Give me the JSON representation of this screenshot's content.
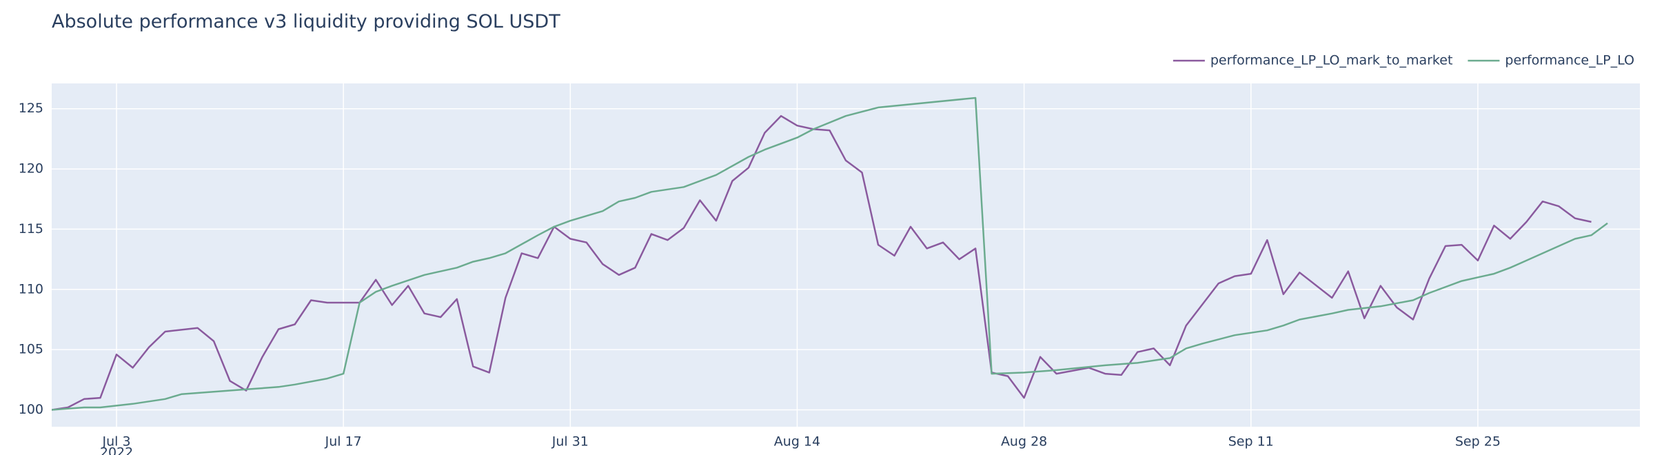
{
  "chart_data": {
    "type": "line",
    "title": "Absolute performance v3 liquidity providing SOL USDT",
    "xlabel": "",
    "ylabel": "",
    "x_start": "2022-06-29",
    "x_end": "2022-10-05",
    "xlim": [
      "2022-06-29",
      "2022-10-05"
    ],
    "ylim": [
      98.6,
      127.1
    ],
    "yticks": [
      100,
      105,
      110,
      115,
      120,
      125
    ],
    "xticks": [
      {
        "date": "2022-07-03",
        "label": "Jul 3",
        "sublabel": "2022"
      },
      {
        "date": "2022-07-17",
        "label": "Jul 17"
      },
      {
        "date": "2022-07-31",
        "label": "Jul 31"
      },
      {
        "date": "2022-08-14",
        "label": "Aug 14"
      },
      {
        "date": "2022-08-28",
        "label": "Aug 28"
      },
      {
        "date": "2022-09-11",
        "label": "Sep 11"
      },
      {
        "date": "2022-09-25",
        "label": "Sep 25"
      }
    ],
    "grid": true,
    "legend_position": "top-right",
    "background": "#e5ecf6",
    "series": [
      {
        "name": "performance_LP_LO_mark_to_market",
        "color": "#8a5a9e",
        "points": [
          [
            "2022-06-29",
            100.0
          ],
          [
            "2022-06-30",
            100.2
          ],
          [
            "2022-07-01",
            100.9
          ],
          [
            "2022-07-02",
            101.0
          ],
          [
            "2022-07-03",
            104.6
          ],
          [
            "2022-07-04",
            103.5
          ],
          [
            "2022-07-05",
            105.2
          ],
          [
            "2022-07-06",
            106.5
          ],
          [
            "2022-07-08",
            106.8
          ],
          [
            "2022-07-09",
            105.7
          ],
          [
            "2022-07-10",
            102.4
          ],
          [
            "2022-07-11",
            101.6
          ],
          [
            "2022-07-12",
            104.4
          ],
          [
            "2022-07-13",
            106.7
          ],
          [
            "2022-07-14",
            107.1
          ],
          [
            "2022-07-15",
            109.1
          ],
          [
            "2022-07-16",
            108.9
          ],
          [
            "2022-07-17",
            108.9
          ],
          [
            "2022-07-18",
            108.9
          ],
          [
            "2022-07-19",
            110.8
          ],
          [
            "2022-07-20",
            108.7
          ],
          [
            "2022-07-21",
            110.3
          ],
          [
            "2022-07-22",
            108.0
          ],
          [
            "2022-07-23",
            107.7
          ],
          [
            "2022-07-24",
            109.2
          ],
          [
            "2022-07-25",
            103.6
          ],
          [
            "2022-07-26",
            103.1
          ],
          [
            "2022-07-27",
            109.3
          ],
          [
            "2022-07-28",
            113.0
          ],
          [
            "2022-07-29",
            112.6
          ],
          [
            "2022-07-30",
            115.2
          ],
          [
            "2022-07-31",
            114.2
          ],
          [
            "2022-08-01",
            113.9
          ],
          [
            "2022-08-02",
            112.1
          ],
          [
            "2022-08-03",
            111.2
          ],
          [
            "2022-08-04",
            111.8
          ],
          [
            "2022-08-05",
            114.6
          ],
          [
            "2022-08-06",
            114.1
          ],
          [
            "2022-08-07",
            115.1
          ],
          [
            "2022-08-08",
            117.4
          ],
          [
            "2022-08-09",
            115.7
          ],
          [
            "2022-08-10",
            119.0
          ],
          [
            "2022-08-11",
            120.1
          ],
          [
            "2022-08-12",
            123.0
          ],
          [
            "2022-08-13",
            124.4
          ],
          [
            "2022-08-14",
            123.6
          ],
          [
            "2022-08-15",
            123.3
          ],
          [
            "2022-08-16",
            123.2
          ],
          [
            "2022-08-17",
            120.7
          ],
          [
            "2022-08-18",
            119.7
          ],
          [
            "2022-08-19",
            113.7
          ],
          [
            "2022-08-20",
            112.8
          ],
          [
            "2022-08-21",
            115.2
          ],
          [
            "2022-08-22",
            113.4
          ],
          [
            "2022-08-23",
            113.9
          ],
          [
            "2022-08-24",
            112.5
          ],
          [
            "2022-08-25",
            113.4
          ],
          [
            "2022-08-26",
            103.1
          ],
          [
            "2022-08-27",
            102.8
          ],
          [
            "2022-08-28",
            101.0
          ],
          [
            "2022-08-29",
            104.4
          ],
          [
            "2022-08-30",
            103.0
          ],
          [
            "2022-09-01",
            103.5
          ],
          [
            "2022-09-02",
            103.0
          ],
          [
            "2022-09-03",
            102.9
          ],
          [
            "2022-09-04",
            104.8
          ],
          [
            "2022-09-05",
            105.1
          ],
          [
            "2022-09-06",
            103.7
          ],
          [
            "2022-09-07",
            107.0
          ],
          [
            "2022-09-09",
            110.5
          ],
          [
            "2022-09-10",
            111.1
          ],
          [
            "2022-09-11",
            111.3
          ],
          [
            "2022-09-12",
            114.1
          ],
          [
            "2022-09-13",
            109.6
          ],
          [
            "2022-09-14",
            111.4
          ],
          [
            "2022-09-16",
            109.3
          ],
          [
            "2022-09-17",
            111.5
          ],
          [
            "2022-09-18",
            107.6
          ],
          [
            "2022-09-19",
            110.3
          ],
          [
            "2022-09-20",
            108.5
          ],
          [
            "2022-09-21",
            107.5
          ],
          [
            "2022-09-22",
            110.9
          ],
          [
            "2022-09-23",
            113.6
          ],
          [
            "2022-09-24",
            113.7
          ],
          [
            "2022-09-25",
            112.4
          ],
          [
            "2022-09-26",
            115.3
          ],
          [
            "2022-09-27",
            114.2
          ],
          [
            "2022-09-28",
            115.6
          ],
          [
            "2022-09-29",
            117.3
          ],
          [
            "2022-09-30",
            116.9
          ],
          [
            "2022-10-01",
            115.9
          ],
          [
            "2022-10-02",
            115.6
          ]
        ]
      },
      {
        "name": "performance_LP_LO",
        "color": "#6bab8f",
        "points": [
          [
            "2022-06-29",
            100.0
          ],
          [
            "2022-07-01",
            100.2
          ],
          [
            "2022-07-02",
            100.2
          ],
          [
            "2022-07-04",
            100.5
          ],
          [
            "2022-07-05",
            100.7
          ],
          [
            "2022-07-06",
            100.9
          ],
          [
            "2022-07-07",
            101.3
          ],
          [
            "2022-07-09",
            101.5
          ],
          [
            "2022-07-11",
            101.7
          ],
          [
            "2022-07-13",
            101.9
          ],
          [
            "2022-07-14",
            102.1
          ],
          [
            "2022-07-16",
            102.6
          ],
          [
            "2022-07-17",
            103.0
          ],
          [
            "2022-07-18",
            108.9
          ],
          [
            "2022-07-19",
            109.8
          ],
          [
            "2022-07-20",
            110.3
          ],
          [
            "2022-07-22",
            111.2
          ],
          [
            "2022-07-24",
            111.8
          ],
          [
            "2022-07-25",
            112.3
          ],
          [
            "2022-07-26",
            112.6
          ],
          [
            "2022-07-27",
            113.0
          ],
          [
            "2022-07-29",
            114.5
          ],
          [
            "2022-07-30",
            115.2
          ],
          [
            "2022-07-31",
            115.7
          ],
          [
            "2022-08-02",
            116.5
          ],
          [
            "2022-08-03",
            117.3
          ],
          [
            "2022-08-04",
            117.6
          ],
          [
            "2022-08-05",
            118.1
          ],
          [
            "2022-08-07",
            118.5
          ],
          [
            "2022-08-09",
            119.5
          ],
          [
            "2022-08-11",
            121.0
          ],
          [
            "2022-08-12",
            121.6
          ],
          [
            "2022-08-14",
            122.6
          ],
          [
            "2022-08-15",
            123.3
          ],
          [
            "2022-08-17",
            124.4
          ],
          [
            "2022-08-19",
            125.1
          ],
          [
            "2022-08-25",
            125.9
          ],
          [
            "2022-08-26",
            103.0
          ],
          [
            "2022-08-28",
            103.1
          ],
          [
            "2022-08-30",
            103.3
          ],
          [
            "2022-09-02",
            103.7
          ],
          [
            "2022-09-04",
            103.9
          ],
          [
            "2022-09-06",
            104.3
          ],
          [
            "2022-09-07",
            105.1
          ],
          [
            "2022-09-08",
            105.5
          ],
          [
            "2022-09-10",
            106.2
          ],
          [
            "2022-09-12",
            106.6
          ],
          [
            "2022-09-13",
            107.0
          ],
          [
            "2022-09-14",
            107.5
          ],
          [
            "2022-09-16",
            108.0
          ],
          [
            "2022-09-17",
            108.3
          ],
          [
            "2022-09-19",
            108.6
          ],
          [
            "2022-09-21",
            109.1
          ],
          [
            "2022-09-22",
            109.7
          ],
          [
            "2022-09-24",
            110.7
          ],
          [
            "2022-09-25",
            111.0
          ],
          [
            "2022-09-26",
            111.3
          ],
          [
            "2022-09-27",
            111.8
          ],
          [
            "2022-09-28",
            112.4
          ],
          [
            "2022-10-01",
            114.2
          ],
          [
            "2022-10-02",
            114.5
          ],
          [
            "2022-10-03",
            115.5
          ]
        ]
      }
    ]
  }
}
